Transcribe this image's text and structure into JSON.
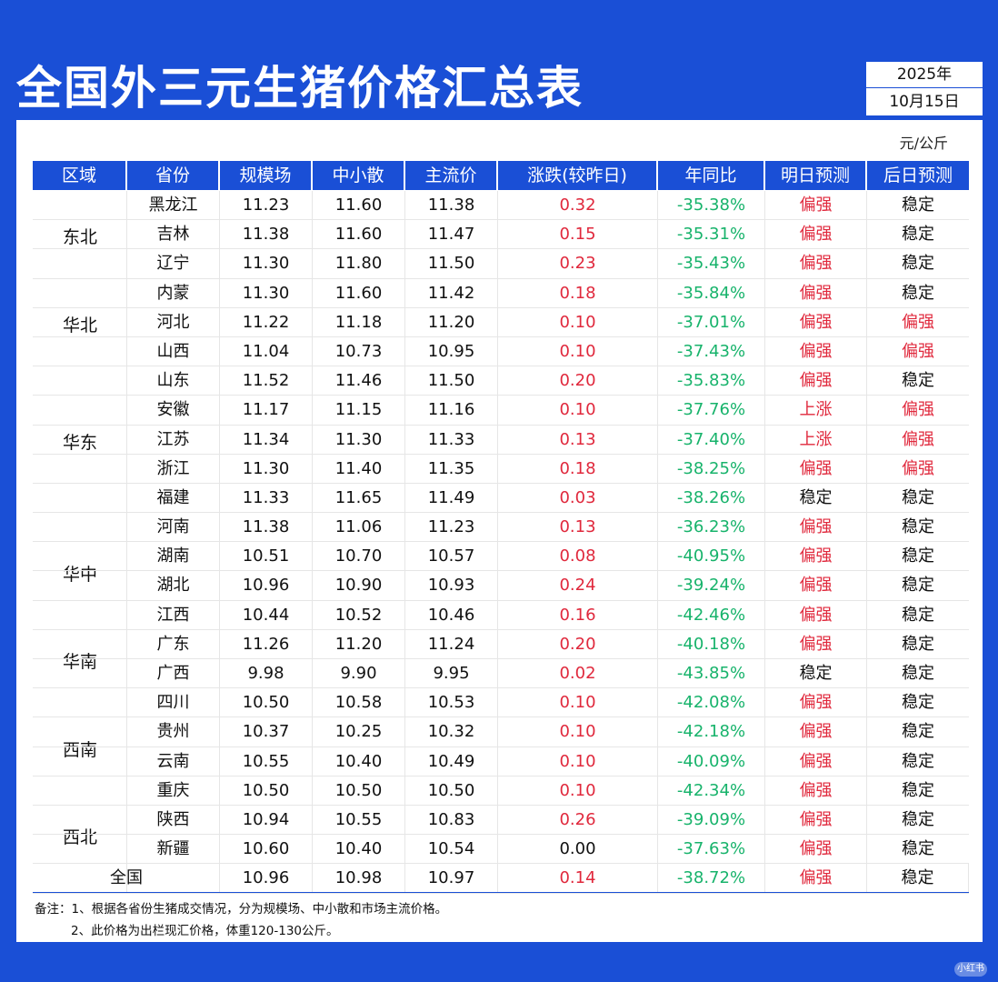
{
  "title": "全国外三元生猪价格汇总表",
  "year": "2025年",
  "date": "10月15日",
  "unit": "元/公斤",
  "headers": [
    "区域",
    "省份",
    "规模场",
    "中小散",
    "主流价",
    "涨跌(较昨日)",
    "年同比",
    "明日预测",
    "后日预测"
  ],
  "regions": [
    {
      "name": "东北",
      "rows": 3
    },
    {
      "name": "华北",
      "rows": 3
    },
    {
      "name": "华东",
      "rows": 5
    },
    {
      "name": "华中",
      "rows": 4
    },
    {
      "name": "华南",
      "rows": 2
    },
    {
      "name": "西南",
      "rows": 4
    },
    {
      "name": "西北",
      "rows": 2
    }
  ],
  "rows": [
    {
      "province": "黑龙江",
      "large": "11.23",
      "small": "11.60",
      "main": "11.38",
      "change": "0.32",
      "yoy": "-35.38%",
      "tomorrow": "偏强",
      "after": "稳定"
    },
    {
      "province": "吉林",
      "large": "11.38",
      "small": "11.60",
      "main": "11.47",
      "change": "0.15",
      "yoy": "-35.31%",
      "tomorrow": "偏强",
      "after": "稳定"
    },
    {
      "province": "辽宁",
      "large": "11.30",
      "small": "11.80",
      "main": "11.50",
      "change": "0.23",
      "yoy": "-35.43%",
      "tomorrow": "偏强",
      "after": "稳定"
    },
    {
      "province": "内蒙",
      "large": "11.30",
      "small": "11.60",
      "main": "11.42",
      "change": "0.18",
      "yoy": "-35.84%",
      "tomorrow": "偏强",
      "after": "稳定"
    },
    {
      "province": "河北",
      "large": "11.22",
      "small": "11.18",
      "main": "11.20",
      "change": "0.10",
      "yoy": "-37.01%",
      "tomorrow": "偏强",
      "after": "偏强"
    },
    {
      "province": "山西",
      "large": "11.04",
      "small": "10.73",
      "main": "10.95",
      "change": "0.10",
      "yoy": "-37.43%",
      "tomorrow": "偏强",
      "after": "偏强"
    },
    {
      "province": "山东",
      "large": "11.52",
      "small": "11.46",
      "main": "11.50",
      "change": "0.20",
      "yoy": "-35.83%",
      "tomorrow": "偏强",
      "after": "稳定"
    },
    {
      "province": "安徽",
      "large": "11.17",
      "small": "11.15",
      "main": "11.16",
      "change": "0.10",
      "yoy": "-37.76%",
      "tomorrow": "上涨",
      "after": "偏强"
    },
    {
      "province": "江苏",
      "large": "11.34",
      "small": "11.30",
      "main": "11.33",
      "change": "0.13",
      "yoy": "-37.40%",
      "tomorrow": "上涨",
      "after": "偏强"
    },
    {
      "province": "浙江",
      "large": "11.30",
      "small": "11.40",
      "main": "11.35",
      "change": "0.18",
      "yoy": "-38.25%",
      "tomorrow": "偏强",
      "after": "偏强"
    },
    {
      "province": "福建",
      "large": "11.33",
      "small": "11.65",
      "main": "11.49",
      "change": "0.03",
      "yoy": "-38.26%",
      "tomorrow": "稳定",
      "after": "稳定"
    },
    {
      "province": "河南",
      "large": "11.38",
      "small": "11.06",
      "main": "11.23",
      "change": "0.13",
      "yoy": "-36.23%",
      "tomorrow": "偏强",
      "after": "稳定"
    },
    {
      "province": "湖南",
      "large": "10.51",
      "small": "10.70",
      "main": "10.57",
      "change": "0.08",
      "yoy": "-40.95%",
      "tomorrow": "偏强",
      "after": "稳定"
    },
    {
      "province": "湖北",
      "large": "10.96",
      "small": "10.90",
      "main": "10.93",
      "change": "0.24",
      "yoy": "-39.24%",
      "tomorrow": "偏强",
      "after": "稳定"
    },
    {
      "province": "江西",
      "large": "10.44",
      "small": "10.52",
      "main": "10.46",
      "change": "0.16",
      "yoy": "-42.46%",
      "tomorrow": "偏强",
      "after": "稳定"
    },
    {
      "province": "广东",
      "large": "11.26",
      "small": "11.20",
      "main": "11.24",
      "change": "0.20",
      "yoy": "-40.18%",
      "tomorrow": "偏强",
      "after": "稳定"
    },
    {
      "province": "广西",
      "large": "9.98",
      "small": "9.90",
      "main": "9.95",
      "change": "0.02",
      "yoy": "-43.85%",
      "tomorrow": "稳定",
      "after": "稳定"
    },
    {
      "province": "四川",
      "large": "10.50",
      "small": "10.58",
      "main": "10.53",
      "change": "0.10",
      "yoy": "-42.08%",
      "tomorrow": "偏强",
      "after": "稳定"
    },
    {
      "province": "贵州",
      "large": "10.37",
      "small": "10.25",
      "main": "10.32",
      "change": "0.10",
      "yoy": "-42.18%",
      "tomorrow": "偏强",
      "after": "稳定"
    },
    {
      "province": "云南",
      "large": "10.55",
      "small": "10.40",
      "main": "10.49",
      "change": "0.10",
      "yoy": "-40.09%",
      "tomorrow": "偏强",
      "after": "稳定"
    },
    {
      "province": "重庆",
      "large": "10.50",
      "small": "10.50",
      "main": "10.50",
      "change": "0.10",
      "yoy": "-42.34%",
      "tomorrow": "偏强",
      "after": "稳定"
    },
    {
      "province": "陕西",
      "large": "10.94",
      "small": "10.55",
      "main": "10.83",
      "change": "0.26",
      "yoy": "-39.09%",
      "tomorrow": "偏强",
      "after": "稳定"
    },
    {
      "province": "新疆",
      "large": "10.60",
      "small": "10.40",
      "main": "10.54",
      "change": "0.00",
      "yoy": "-37.63%",
      "tomorrow": "偏强",
      "after": "稳定"
    }
  ],
  "national": {
    "label": "全国",
    "large": "10.96",
    "small": "10.98",
    "main": "10.97",
    "change": "0.14",
    "yoy": "-38.72%",
    "tomorrow": "偏强",
    "after": "稳定"
  },
  "notes": [
    "备注：1、根据各省份生猪成交情况，分为规模场、中小散和市场主流价格。",
    "2、此价格为出栏现汇价格，体重120-130公斤。"
  ],
  "colors": {
    "accent": "#1a4fd6",
    "up": "#e0283c",
    "down": "#17b36b"
  }
}
